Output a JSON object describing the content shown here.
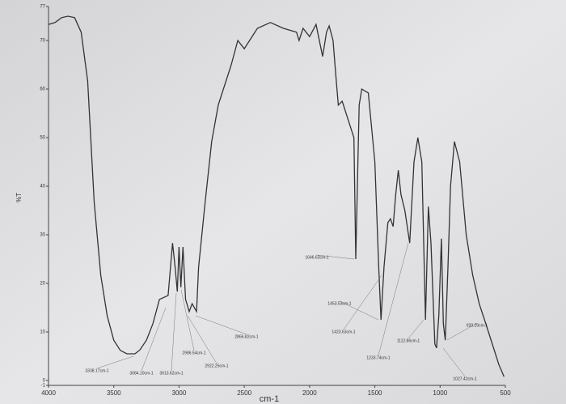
{
  "chart_data": {
    "type": "line",
    "xlabel": "cm-1",
    "ylabel": "%T",
    "xlim": [
      4000,
      500
    ],
    "xticks": [
      4000,
      3500,
      3000,
      2500,
      2000,
      1500,
      1000,
      500
    ],
    "ylim": [
      -1,
      77
    ],
    "yticks": [
      -1,
      0,
      10,
      20,
      30,
      40,
      50,
      60,
      70,
      77
    ],
    "x": [
      4000,
      3950,
      3900,
      3850,
      3800,
      3750,
      3700,
      3650,
      3600,
      3550,
      3500,
      3450,
      3400,
      3338,
      3300,
      3250,
      3200,
      3150,
      3084,
      3050,
      3030,
      3013,
      3000,
      2986,
      2970,
      2950,
      2922,
      2900,
      2866,
      2850,
      2800,
      2750,
      2700,
      2600,
      2550,
      2500,
      2400,
      2300,
      2200,
      2100,
      2080,
      2050,
      2000,
      1950,
      1900,
      1870,
      1850,
      1820,
      1800,
      1780,
      1750,
      1700,
      1660,
      1646,
      1620,
      1600,
      1550,
      1500,
      1470,
      1453,
      1430,
      1400,
      1380,
      1360,
      1340,
      1320,
      1300,
      1270,
      1233,
      1200,
      1170,
      1140,
      1112,
      1090,
      1070,
      1040,
      1027,
      1010,
      990,
      975,
      960,
      940,
      920,
      890,
      850,
      800,
      750,
      700,
      650,
      600,
      550,
      510
    ],
    "series": [
      {
        "name": "%T",
        "color": "#333333",
        "values": [
          73.3,
          73.7,
          74.7,
          75,
          74.7,
          71.7,
          61.7,
          36.7,
          21.7,
          13.3,
          8.3,
          6.2,
          5.5,
          5.5,
          6.3,
          8.3,
          11.7,
          16.7,
          17.5,
          28.3,
          23.3,
          18.3,
          27.5,
          19.2,
          27.5,
          16.7,
          14.2,
          15.8,
          14.2,
          23.3,
          36.7,
          49.2,
          56.7,
          65,
          70,
          68.3,
          72.5,
          73.7,
          72.5,
          71.7,
          70,
          72.5,
          70.8,
          73.3,
          66.7,
          71.7,
          73,
          70,
          63.3,
          56.7,
          57.5,
          53.3,
          50,
          25,
          56.7,
          60,
          59.2,
          45,
          23.3,
          12.5,
          23.3,
          32.5,
          33.3,
          31.7,
          38.3,
          43.3,
          38.3,
          35,
          28.3,
          45,
          50,
          45,
          12.5,
          35.8,
          28.3,
          7.5,
          6.7,
          13.3,
          29.2,
          11.7,
          8.3,
          23.3,
          40,
          49.2,
          45,
          30,
          21.7,
          15.8,
          11.7,
          7.5,
          3.3,
          0.8
        ]
      }
    ],
    "annotations": [
      "3338.17cm-1",
      "3084.10cm-1",
      "3013.62cm-1",
      "2986.54cm-1",
      "2922.25cm-1",
      "2866.82cm-1",
      "1646.63cm-1",
      "1453.53cm-1",
      "1423.63cm-1",
      "1233.74cm-1",
      "1112.86cm-1",
      "1027.42cm-1",
      "920.29cm-1"
    ]
  }
}
